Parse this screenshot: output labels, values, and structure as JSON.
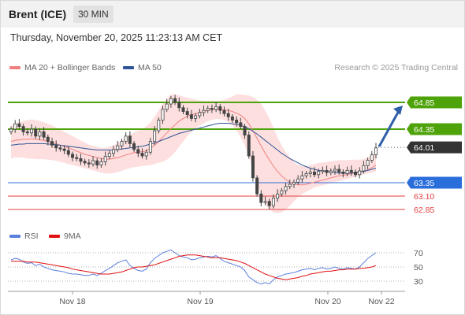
{
  "header": {
    "instrument": "Brent (ICE)",
    "timeframe": "30 MIN"
  },
  "timestamp": "Thursday, November 20, 2025 11:23:13 AM CET",
  "legend": {
    "ma20_label": "MA 20 + Bollinger Bands",
    "ma50_label": "MA 50",
    "ma20_color": "#f08080",
    "ma50_color": "#2f5597",
    "credit": "Research © 2025 Trading Central"
  },
  "rsi_legend": {
    "rsi_label": "RSI",
    "ma_label": "9MA",
    "rsi_color": "#5b7fde",
    "ma_color": "#e01010"
  },
  "chart_data": [
    {
      "type": "candlestick",
      "title": "",
      "ylim": [
        62.55,
        65.05
      ],
      "x_ticks": [
        "Nov 18",
        "Nov 19",
        "Nov 20",
        "Nov 22"
      ],
      "levels": [
        {
          "value": 64.85,
          "label": "64.85",
          "kind": "resistance",
          "color": "#4fa30a"
        },
        {
          "value": 64.35,
          "label": "64.35",
          "kind": "resistance",
          "color": "#4fa30a"
        },
        {
          "value": 64.01,
          "label": "64.01",
          "kind": "last-price",
          "color": "#333333"
        },
        {
          "value": 63.35,
          "label": "63.35",
          "kind": "pivot",
          "color": "#2a6edb"
        },
        {
          "value": 63.1,
          "label": "63.10",
          "kind": "support",
          "color": "#e04040"
        },
        {
          "value": 62.85,
          "label": "62.85",
          "kind": "support",
          "color": "#e04040"
        }
      ],
      "closes": [
        64.35,
        64.45,
        64.4,
        64.3,
        64.28,
        64.35,
        64.22,
        64.3,
        64.2,
        64.12,
        64.05,
        64.0,
        63.98,
        63.95,
        63.88,
        63.82,
        63.8,
        63.75,
        63.72,
        63.7,
        63.76,
        63.68,
        63.74,
        63.84,
        63.9,
        63.97,
        64.04,
        64.12,
        64.22,
        64.08,
        63.97,
        63.9,
        63.85,
        63.92,
        64.12,
        64.32,
        64.52,
        64.72,
        64.82,
        64.92,
        64.85,
        64.75,
        64.68,
        64.62,
        64.55,
        64.6,
        64.66,
        64.7,
        64.74,
        64.72,
        64.77,
        64.7,
        64.64,
        64.58,
        64.52,
        64.47,
        64.4,
        64.24,
        63.85,
        63.44,
        63.14,
        62.98,
        63.0,
        62.92,
        63.06,
        63.14,
        63.2,
        63.28,
        63.32,
        63.36,
        63.42,
        63.48,
        63.52,
        63.55,
        63.5,
        63.56,
        63.58,
        63.54,
        63.57,
        63.6,
        63.55,
        63.52,
        63.58,
        63.55,
        63.5,
        63.57,
        63.67,
        63.77,
        63.87,
        64.0
      ],
      "opens": [
        64.3,
        64.35,
        64.45,
        64.4,
        64.3,
        64.28,
        64.35,
        64.22,
        64.3,
        64.2,
        64.12,
        64.05,
        64.0,
        63.98,
        63.95,
        63.88,
        63.82,
        63.8,
        63.75,
        63.72,
        63.7,
        63.76,
        63.68,
        63.74,
        63.84,
        63.9,
        63.97,
        64.04,
        64.12,
        64.22,
        64.08,
        63.97,
        63.9,
        63.85,
        63.92,
        64.12,
        64.32,
        64.52,
        64.72,
        64.82,
        64.92,
        64.85,
        64.75,
        64.68,
        64.62,
        64.55,
        64.6,
        64.66,
        64.7,
        64.74,
        64.72,
        64.77,
        64.7,
        64.64,
        64.58,
        64.52,
        64.47,
        64.4,
        64.24,
        63.85,
        63.44,
        63.14,
        62.98,
        63.0,
        62.92,
        63.06,
        63.14,
        63.2,
        63.28,
        63.32,
        63.36,
        63.42,
        63.48,
        63.52,
        63.55,
        63.5,
        63.56,
        63.58,
        63.54,
        63.57,
        63.6,
        63.55,
        63.52,
        63.58,
        63.55,
        63.5,
        63.57,
        63.67,
        63.77,
        63.87
      ],
      "ma20": [
        64.12,
        64.14,
        64.15,
        64.16,
        64.16,
        64.17,
        64.16,
        64.15,
        64.14,
        64.12,
        64.1,
        64.08,
        64.05,
        64.03,
        64.0,
        63.97,
        63.94,
        63.91,
        63.88,
        63.86,
        63.84,
        63.82,
        63.8,
        63.79,
        63.79,
        63.8,
        63.82,
        63.84,
        63.87,
        63.89,
        63.91,
        63.92,
        63.93,
        63.95,
        63.99,
        64.05,
        64.12,
        64.2,
        64.28,
        64.36,
        64.43,
        64.5,
        64.55,
        64.59,
        64.62,
        64.64,
        64.66,
        64.68,
        64.7,
        64.71,
        64.72,
        64.72,
        64.71,
        64.7,
        64.68,
        64.65,
        64.61,
        64.55,
        64.45,
        64.32,
        64.18,
        64.04,
        63.9,
        63.78,
        63.66,
        63.56,
        63.48,
        63.41,
        63.36,
        63.33,
        63.31,
        63.31,
        63.32,
        63.34,
        63.36,
        63.38,
        63.4,
        63.42,
        63.44,
        63.46,
        63.48,
        63.49,
        63.5,
        63.52,
        63.53,
        63.54,
        63.56,
        63.59,
        63.63,
        63.68
      ],
      "ma50": [
        64.05,
        64.06,
        64.07,
        64.07,
        64.08,
        64.08,
        64.08,
        64.08,
        64.08,
        64.07,
        64.07,
        64.06,
        64.05,
        64.04,
        64.03,
        64.02,
        64.01,
        64.0,
        63.99,
        63.98,
        63.97,
        63.96,
        63.96,
        63.96,
        63.96,
        63.96,
        63.97,
        63.98,
        63.99,
        64.0,
        64.01,
        64.02,
        64.03,
        64.05,
        64.07,
        64.09,
        64.12,
        64.15,
        64.18,
        64.21,
        64.24,
        64.27,
        64.29,
        64.31,
        64.33,
        64.35,
        64.37,
        64.39,
        64.41,
        64.43,
        64.45,
        64.46,
        64.46,
        64.46,
        64.45,
        64.44,
        64.42,
        64.4,
        64.36,
        64.31,
        64.26,
        64.2,
        64.14,
        64.08,
        64.02,
        63.96,
        63.9,
        63.85,
        63.8,
        63.76,
        63.72,
        63.68,
        63.65,
        63.62,
        63.6,
        63.58,
        63.57,
        63.56,
        63.55,
        63.54,
        63.53,
        63.53,
        63.53,
        63.53,
        63.54,
        63.55,
        63.56,
        63.58,
        63.6,
        63.62
      ],
      "bb_upper": [
        64.42,
        64.45,
        64.48,
        64.5,
        64.52,
        64.53,
        64.52,
        64.5,
        64.48,
        64.45,
        64.42,
        64.38,
        64.34,
        64.3,
        64.26,
        64.22,
        64.18,
        64.14,
        64.1,
        64.06,
        64.04,
        64.02,
        64.0,
        64.0,
        64.02,
        64.05,
        64.09,
        64.14,
        64.2,
        64.25,
        64.29,
        64.32,
        64.35,
        64.4,
        64.48,
        64.58,
        64.7,
        64.82,
        64.92,
        65.0,
        65.0,
        64.98,
        64.96,
        64.94,
        64.92,
        64.9,
        64.89,
        64.88,
        64.88,
        64.88,
        64.88,
        64.88,
        64.9,
        64.93,
        64.96,
        65.0,
        65.0,
        64.99,
        64.98,
        64.95,
        64.9,
        64.82,
        64.7,
        64.55,
        64.38,
        64.2,
        64.05,
        63.92,
        63.82,
        63.74,
        63.68,
        63.66,
        63.66,
        63.68,
        63.7,
        63.72,
        63.73,
        63.74,
        63.75,
        63.76,
        63.77,
        63.77,
        63.77,
        63.78,
        63.78,
        63.78,
        63.79,
        63.82,
        63.87,
        63.94
      ],
      "bb_lower": [
        63.8,
        63.82,
        63.82,
        63.82,
        63.8,
        63.8,
        63.79,
        63.79,
        63.79,
        63.78,
        63.77,
        63.76,
        63.74,
        63.72,
        63.7,
        63.68,
        63.66,
        63.64,
        63.62,
        63.6,
        63.58,
        63.56,
        63.54,
        63.52,
        63.52,
        63.53,
        63.55,
        63.57,
        63.6,
        63.62,
        63.64,
        63.65,
        63.66,
        63.67,
        63.68,
        63.7,
        63.72,
        63.74,
        63.78,
        63.84,
        63.92,
        64.02,
        64.12,
        64.22,
        64.3,
        64.36,
        64.42,
        64.46,
        64.5,
        64.52,
        64.54,
        64.54,
        64.52,
        64.48,
        64.42,
        64.32,
        64.2,
        64.05,
        63.85,
        63.6,
        63.35,
        63.12,
        62.95,
        62.85,
        62.8,
        62.78,
        62.8,
        62.85,
        62.92,
        63.0,
        63.08,
        63.14,
        63.18,
        63.22,
        63.26,
        63.28,
        63.3,
        63.32,
        63.34,
        63.36,
        63.38,
        63.4,
        63.42,
        63.44,
        63.46,
        63.48,
        63.5,
        63.52,
        63.54,
        63.56
      ]
    },
    {
      "type": "line",
      "title": "",
      "ylim": [
        20,
        80
      ],
      "y_ticks": [
        70,
        50,
        30
      ],
      "series": [
        {
          "name": "RSI",
          "values": [
            60,
            62,
            61,
            57,
            55,
            56,
            52,
            54,
            50,
            48,
            46,
            45,
            44,
            43,
            41,
            40,
            40,
            39,
            38,
            38,
            40,
            38,
            41,
            45,
            48,
            52,
            56,
            58,
            60,
            52,
            48,
            45,
            44,
            47,
            56,
            62,
            66,
            70,
            72,
            74,
            70,
            66,
            64,
            63,
            60,
            61,
            63,
            64,
            65,
            64,
            66,
            62,
            58,
            56,
            54,
            52,
            50,
            45,
            36,
            32,
            28,
            26,
            28,
            26,
            32,
            36,
            38,
            40,
            41,
            42,
            44,
            46,
            47,
            48,
            46,
            48,
            49,
            47,
            48,
            50,
            48,
            47,
            49,
            48,
            47,
            50,
            56,
            62,
            66,
            70
          ]
        },
        {
          "name": "9MA",
          "values": [
            58,
            58,
            58,
            58,
            57,
            57,
            57,
            56,
            55,
            54,
            53,
            52,
            51,
            50,
            49,
            47,
            46,
            45,
            44,
            43,
            42,
            41,
            40,
            40,
            40,
            41,
            42,
            43,
            45,
            47,
            49,
            50,
            50,
            51,
            52,
            53,
            55,
            57,
            59,
            61,
            63,
            65,
            66,
            67,
            67,
            67,
            66,
            65,
            64,
            63,
            63,
            63,
            62,
            61,
            60,
            59,
            57,
            55,
            52,
            49,
            46,
            43,
            40,
            38,
            36,
            34,
            33,
            32,
            33,
            34,
            35,
            37,
            38,
            40,
            41,
            42,
            43,
            44,
            44,
            45,
            46,
            46,
            47,
            47,
            47,
            48,
            48,
            49,
            50,
            52
          ]
        }
      ]
    }
  ]
}
